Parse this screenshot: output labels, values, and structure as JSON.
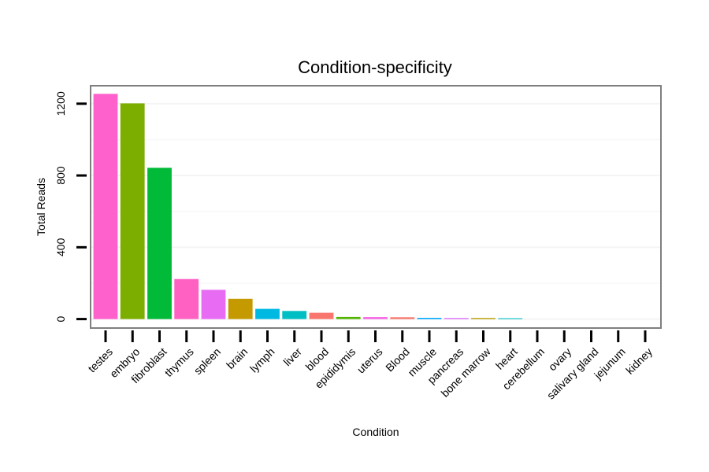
{
  "chart_data": {
    "type": "bar",
    "title": "Condition-specificity",
    "xlabel": "Condition",
    "ylabel": "Total Reads",
    "ylim": [
      -50,
      1300
    ],
    "yticks": [
      0,
      400,
      800,
      1200
    ],
    "ytick_labels": [
      "0",
      "400",
      "800",
      "1200"
    ],
    "grid": true,
    "legend": "none",
    "categories": [
      "testes",
      "embryo",
      "fibroblast",
      "thymus",
      "spleen",
      "brain",
      "lymph",
      "liver",
      "blood",
      "epididymis",
      "uterus",
      "Blood",
      "muscle",
      "pancreas",
      "bone marrow",
      "heart",
      "cerebellum",
      "ovary",
      "salivary gland",
      "jejunum",
      "kidney"
    ],
    "values": [
      1255,
      1202,
      843,
      223,
      163,
      113,
      57,
      45,
      35,
      12,
      11,
      10,
      7,
      6,
      6,
      5,
      0,
      0,
      0,
      0,
      0
    ],
    "colors": [
      "#FF61CC",
      "#7CAE00",
      "#00BA38",
      "#FF61C3",
      "#E76BF3",
      "#C49A00",
      "#00B9E3",
      "#00BFC4",
      "#F8766D",
      "#53B400",
      "#F564E3",
      "#F8766D",
      "#00A9FF",
      "#DB72FB",
      "#B79F00",
      "#00BFC4",
      "#00C094",
      "#619CFF",
      "#FF6C91",
      "#00B6EB",
      "#A58AFF"
    ]
  }
}
